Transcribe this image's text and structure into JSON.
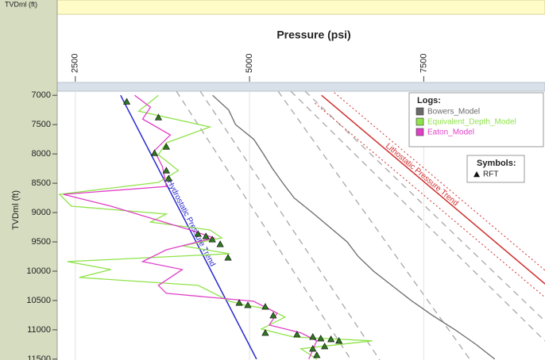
{
  "header": {
    "corner_label": "TVDml (ft)"
  },
  "chart_data": {
    "type": "line",
    "title": "Pressure (psi)",
    "ylabel": "TVDml (ft)",
    "xlim": [
      2240,
      9240
    ],
    "ylim": [
      6930,
      11515
    ],
    "xticks": [
      2500,
      5000,
      7500
    ],
    "yticks": [
      7000,
      7500,
      8000,
      8500,
      9000,
      9500,
      10000,
      10500,
      11000,
      11500
    ],
    "grid": true,
    "legend_title": "Logs:",
    "series": [
      {
        "name": "Bowers_Model",
        "color": "#6a6a6a",
        "x": [
          4470,
          4700,
          4800,
          5060,
          5200,
          5330,
          5480,
          5640,
          5900,
          6150,
          6400,
          6560,
          6780,
          7050,
          7320,
          7620,
          7950,
          8250,
          8520
        ],
        "values": [
          7000,
          7250,
          7500,
          7750,
          8000,
          8250,
          8500,
          8750,
          9000,
          9250,
          9500,
          9750,
          10000,
          10250,
          10500,
          10750,
          11000,
          11250,
          11500
        ]
      },
      {
        "name": "Equivalent_Depth_Model",
        "color": "#8fe34a",
        "x": [
          3693,
          3409,
          4431,
          3806,
          3693,
          3977,
          3693,
          2273,
          2443,
          3806,
          3579,
          4431,
          4602,
          4034,
          4715,
          2386,
          3011,
          2557,
          4261,
          4715,
          4942,
          5283,
          5510,
          5170,
          5624,
          6760,
          5738,
          5965
        ],
        "values": [
          7000,
          7270,
          7540,
          7811,
          8013,
          8283,
          8486,
          8689,
          8891,
          9027,
          9162,
          9297,
          9432,
          9567,
          9702,
          9837,
          9972,
          10107,
          10242,
          10513,
          10580,
          10648,
          10783,
          10986,
          11121,
          11188,
          11323,
          11500
        ]
      },
      {
        "name": "Eaton_Model",
        "color": "#e040c8",
        "x": [
          3352,
          3579,
          3466,
          3863,
          3636,
          3750,
          3806,
          2330,
          3011,
          3579,
          4147,
          4488,
          3806,
          3466,
          4034,
          3693,
          3806,
          5056,
          5397,
          5283,
          5738,
          5965,
          5851
        ],
        "values": [
          7000,
          7203,
          7405,
          7676,
          7946,
          8216,
          8554,
          8689,
          8891,
          9094,
          9297,
          9432,
          9635,
          9837,
          9972,
          10242,
          10378,
          10513,
          10716,
          10918,
          11053,
          11188,
          11500
        ]
      }
    ],
    "symbols_title": "Symbols:",
    "points": {
      "name": "RFT",
      "color": "#2f7a1f",
      "x": [
        3238,
        3693,
        3806,
        3636,
        3806,
        3840,
        4261,
        4374,
        4465,
        4579,
        4692,
        4852,
        4976,
        5226,
        5340,
        5226,
        5681,
        5908,
        6022,
        6169,
        6283,
        6078,
        5908,
        5965
      ],
      "values": [
        7108,
        7378,
        7878,
        7986,
        8283,
        8419,
        9364,
        9405,
        9459,
        9540,
        9770,
        10540,
        10580,
        10607,
        10756,
        11053,
        11080,
        11121,
        11148,
        11161,
        11188,
        11283,
        11323,
        11431
      ]
    },
    "trend_lines": [
      {
        "label": "Hydrostatic Pressure Trend",
        "color": "#2a2ad0",
        "x": [
          3150,
          5100
        ],
        "values": [
          7000,
          11500
        ]
      },
      {
        "label": "Lithostatic Pressure Trend",
        "color": "#d03030",
        "x": [
          6033,
          10520
        ],
        "values": [
          7000,
          11500
        ]
      }
    ]
  }
}
